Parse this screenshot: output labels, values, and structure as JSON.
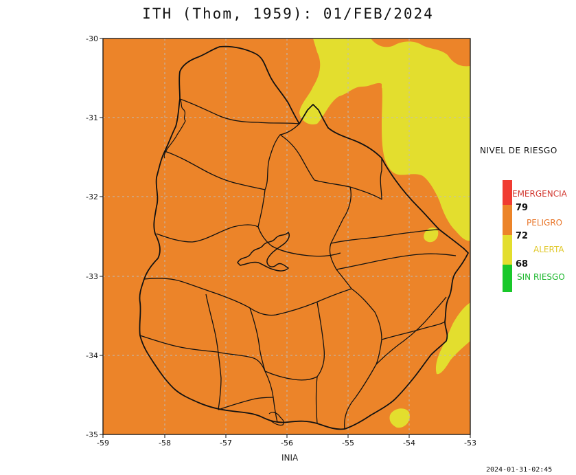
{
  "title": "ITH (Thom, 1959): 01/FEB/2024",
  "legend": {
    "title": "NIVEL DE RIESGO",
    "categories": [
      {
        "label": "EMERGENCIA",
        "color": "#f03c32",
        "label_color": "#d23a32"
      },
      {
        "label": "PELIGRO",
        "color": "#ec8429",
        "label_color": "#e8762a"
      },
      {
        "label": "ALERTA",
        "color": "#e3de2e",
        "label_color": "#e0c829"
      },
      {
        "label": "SIN RIESGO",
        "color": "#19c82a",
        "label_color": "#19b72a"
      }
    ],
    "thresholds": [
      "79",
      "72",
      "68"
    ]
  },
  "axes": {
    "x_ticks": [
      "-59",
      "-58",
      "-57",
      "-56",
      "-55",
      "-54",
      "-53"
    ],
    "y_ticks": [
      "-30",
      "-31",
      "-32",
      "-33",
      "-34",
      "-35"
    ]
  },
  "source": "INIA",
  "timestamp": "2024-01-31-02:45",
  "colors": {
    "background_zone": "#ec8429",
    "alert_zone": "#e3de2e",
    "border": "#111111",
    "grid": "#b9b9b9"
  }
}
